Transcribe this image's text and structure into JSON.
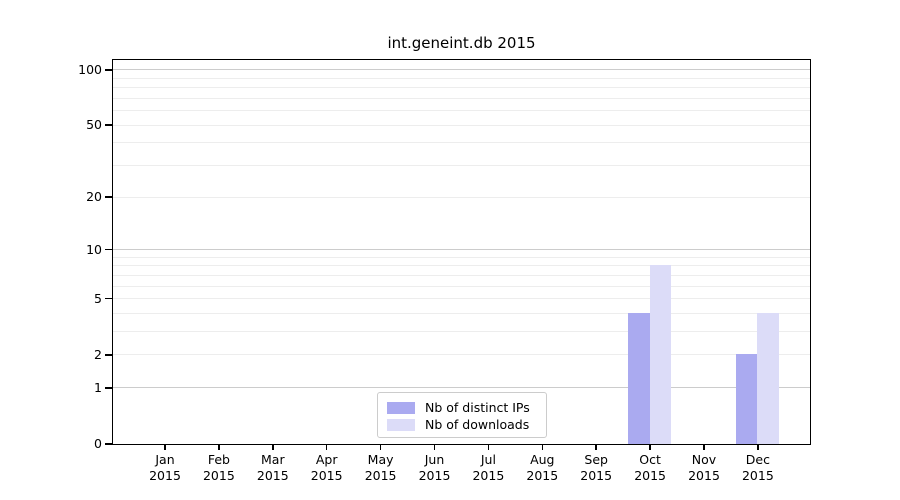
{
  "figure": {
    "background": "#ffffff"
  },
  "chart_data": {
    "type": "bar",
    "title": "int.geneint.db 2015",
    "categories": [
      "Jan",
      "Feb",
      "Mar",
      "Apr",
      "May",
      "Jun",
      "Jul",
      "Aug",
      "Sep",
      "Oct",
      "Nov",
      "Dec"
    ],
    "year_label": "2015",
    "series": [
      {
        "name": "Nb of distinct IPs",
        "color": "#aaaaf0",
        "values": [
          0,
          0,
          0,
          0,
          0,
          0,
          0,
          0,
          0,
          4,
          0,
          2
        ]
      },
      {
        "name": "Nb of downloads",
        "color": "#dcdcf8",
        "values": [
          0,
          0,
          0,
          0,
          0,
          0,
          0,
          0,
          0,
          8,
          0,
          4
        ]
      }
    ],
    "xlabel": "",
    "ylabel": "",
    "yscale": "log1p",
    "ylim": [
      0,
      113
    ],
    "y_ticks": [
      0,
      1,
      2,
      5,
      10,
      20,
      50,
      100
    ],
    "y_major_gridlines": [
      1,
      10,
      100
    ],
    "y_minor_gridlines": [
      2,
      3,
      4,
      5,
      6,
      7,
      8,
      9,
      20,
      30,
      40,
      50,
      60,
      70,
      80,
      90
    ],
    "grid": true,
    "legend_position": "lower center"
  },
  "colors": {
    "spine": "#000000",
    "major_grid": "#cccccc",
    "minor_grid": "#ededed",
    "text": "#000000"
  }
}
